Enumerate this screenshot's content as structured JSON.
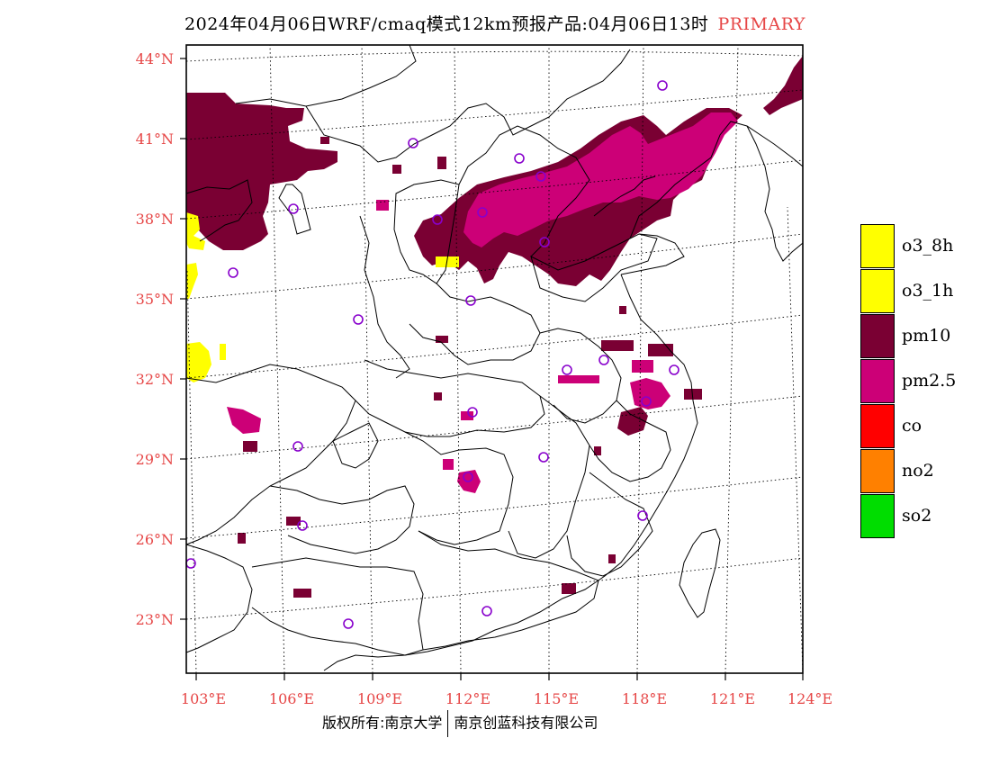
{
  "title": {
    "main": "2024年04月06日WRF/cmaq模式12km预报产品:04月06日13时",
    "tag": "PRIMARY"
  },
  "axes": {
    "lat_labels": [
      "44°N",
      "41°N",
      "38°N",
      "35°N",
      "32°N",
      "29°N",
      "26°N",
      "23°N"
    ],
    "lon_labels": [
      "103°E",
      "106°E",
      "109°E",
      "112°E",
      "115°E",
      "118°E",
      "121°E",
      "124°E"
    ],
    "label_color": "#e64646"
  },
  "legend": {
    "items": [
      {
        "label": "o3_8h",
        "color": "#ffff00"
      },
      {
        "label": "o3_1h",
        "color": "#ffff00"
      },
      {
        "label": "pm10",
        "color": "#7a0033"
      },
      {
        "label": "pm2.5",
        "color": "#cc0077"
      },
      {
        "label": "co",
        "color": "#ff0000"
      },
      {
        "label": "no2",
        "color": "#ff8000"
      },
      {
        "label": "so2",
        "color": "#00dd00"
      }
    ]
  },
  "footer": {
    "left": "版权所有:南京大学",
    "right": "南京创蓝科技有限公司"
  },
  "colors": {
    "pm10": "#7a0033",
    "pm25": "#cc0077",
    "o3": "#ffff00",
    "station": "#8800cc",
    "title_tag": "#e64646"
  }
}
